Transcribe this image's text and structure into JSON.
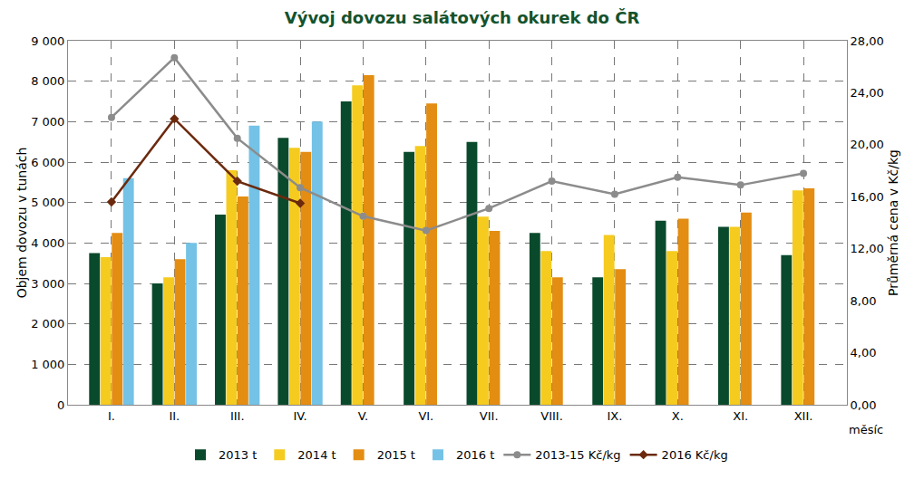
{
  "chart_data": {
    "type": "bar",
    "title": "Vývoj dovozu salátových okurek do ČR",
    "x_label": "měsíc",
    "y_label": "Objem dovozu v tunách",
    "y2_label": "Průměrná cena v Kč/kg",
    "categories": [
      "I.",
      "II.",
      "III.",
      "IV.",
      "V.",
      "VI.",
      "VII.",
      "VIII.",
      "IX.",
      "X.",
      "XI.",
      "XII."
    ],
    "series": [
      {
        "name": "2013 t",
        "type": "bar",
        "color": "#0a4a2c",
        "values": [
          3750,
          3000,
          4700,
          6600,
          7500,
          6250,
          6500,
          4250,
          3150,
          4550,
          4400,
          3700
        ]
      },
      {
        "name": "2014 t",
        "type": "bar",
        "color": "#f5cb1f",
        "values": [
          3650,
          3150,
          5800,
          6350,
          7900,
          6400,
          4650,
          3800,
          4200,
          3800,
          4400,
          5300
        ]
      },
      {
        "name": "2015 t",
        "type": "bar",
        "color": "#e38d12",
        "values": [
          4250,
          3600,
          5150,
          6250,
          8150,
          7450,
          4300,
          3150,
          3350,
          4600,
          4750,
          5350
        ]
      },
      {
        "name": "2016 t",
        "type": "bar",
        "color": "#74c2e6",
        "values": [
          5600,
          4000,
          6900,
          7000,
          null,
          null,
          null,
          null,
          null,
          null,
          null,
          null
        ]
      },
      {
        "name": "2013-15 Kč/kg",
        "type": "line",
        "axis": "y2",
        "color": "#8c8c8c",
        "marker": "circle",
        "values": [
          22.1,
          26.7,
          20.5,
          16.7,
          14.5,
          13.4,
          15.1,
          17.2,
          16.2,
          17.5,
          16.9,
          17.8
        ]
      },
      {
        "name": "2016 Kč/kg",
        "type": "line",
        "axis": "y2",
        "color": "#6b2a0e",
        "marker": "diamond",
        "values": [
          15.6,
          22.0,
          17.2,
          15.5,
          null,
          null,
          null,
          null,
          null,
          null,
          null,
          null
        ]
      }
    ],
    "ylim": [
      0,
      9000
    ],
    "yticks": [
      0,
      {
        "value": 1000,
        "label": "1 000"
      },
      {
        "value": 2000,
        "label": "2 000"
      },
      {
        "value": 3000,
        "label": "3 000"
      },
      {
        "value": 4000,
        "label": "4 000"
      },
      {
        "value": 5000,
        "label": "5 000"
      },
      {
        "value": 6000,
        "label": "6 000"
      },
      {
        "value": 7000,
        "label": "7 000"
      },
      {
        "value": 8000,
        "label": "8 000"
      },
      {
        "value": 9000,
        "label": "9 000"
      }
    ],
    "y2lim": [
      0,
      28
    ],
    "y2ticks": [
      {
        "value": 0,
        "label": "0,00"
      },
      {
        "value": 4,
        "label": "4,00"
      },
      {
        "value": 8,
        "label": "8,00"
      },
      {
        "value": 12,
        "label": "12,00"
      },
      {
        "value": 16,
        "label": "16,00"
      },
      {
        "value": 20,
        "label": "20,00"
      },
      {
        "value": 24,
        "label": "24,00"
      },
      {
        "value": 28,
        "label": "28,00"
      }
    ],
    "grid": true,
    "legend": "bottom"
  }
}
